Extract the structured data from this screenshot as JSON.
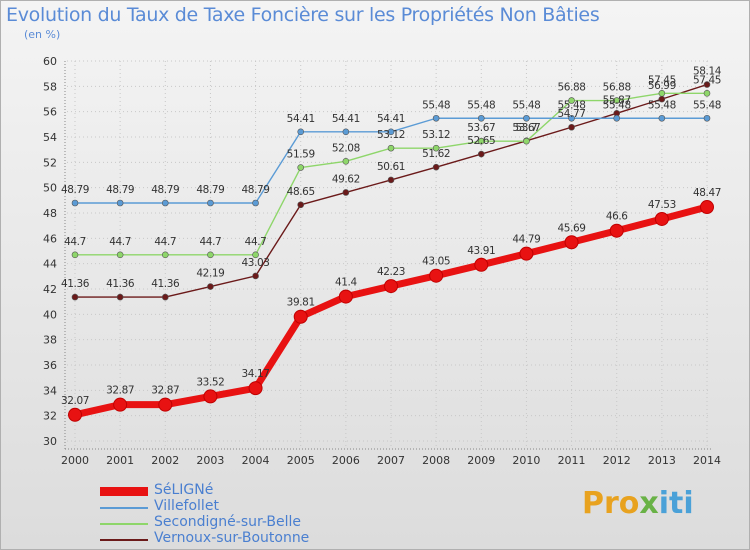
{
  "title": "Evolution du Taux de Taxe Foncière sur les Propriétés Non Bâties",
  "unit": "(en %)",
  "logo": {
    "p": "Pro",
    "x": "x",
    "i": "iti"
  },
  "colors": {
    "grid": "#c8c8c8",
    "axis_text": "#333333",
    "label_text": "#333333"
  },
  "chart_data": {
    "type": "line",
    "title": "Evolution du Taux de Taxe Foncière sur les Propriétés Non Bâties",
    "ylabel": "(en %)",
    "xlabel": "",
    "ylim": [
      30,
      60
    ],
    "yticks": [
      "30",
      "32",
      "34",
      "36",
      "38",
      "40",
      "42",
      "44",
      "46",
      "48",
      "50",
      "52",
      "54",
      "56",
      "58",
      "60"
    ],
    "categories": [
      "2000",
      "2001",
      "2002",
      "2003",
      "2004",
      "2005",
      "2006",
      "2007",
      "2008",
      "2009",
      "2010",
      "2011",
      "2012",
      "2013",
      "2014"
    ],
    "series": [
      {
        "name": "SéLIGNé",
        "color": "#e81212",
        "values": [
          32.07,
          32.87,
          32.87,
          33.52,
          34.17,
          39.81,
          41.4,
          42.23,
          43.05,
          43.91,
          44.79,
          45.69,
          46.6,
          47.53,
          48.47
        ],
        "labels": [
          "32.07",
          "32.87",
          "32.87",
          "33.52",
          "34.17",
          "39.81",
          "41.4",
          "42.23",
          "43.05",
          "43.91",
          "44.79",
          "45.69",
          "46.6",
          "47.53",
          "48.47"
        ]
      },
      {
        "name": "Villefollet",
        "color": "#5b9bd5",
        "values": [
          48.79,
          48.79,
          48.79,
          48.79,
          48.79,
          54.41,
          54.41,
          54.41,
          55.48,
          55.48,
          55.48,
          55.48,
          55.48,
          55.48,
          55.48
        ],
        "labels": [
          "48.79",
          "48.79",
          "48.79",
          "48.79",
          "48.79",
          "54.41",
          "54.41",
          "54.41",
          "55.48",
          "55.48",
          "55.48",
          "55.48",
          "55.48",
          "55.48",
          "55.48"
        ]
      },
      {
        "name": "Secondigné-sur-Belle",
        "color": "#8ed66a",
        "values": [
          44.7,
          44.7,
          44.7,
          44.7,
          44.7,
          51.59,
          52.08,
          53.12,
          53.12,
          53.67,
          53.67,
          56.88,
          56.88,
          57.45,
          57.45
        ],
        "labels": [
          "44.7",
          "44.7",
          "44.7",
          "44.7",
          "44.7",
          "51.59",
          "52.08",
          "53.12",
          "53.12",
          "53.67",
          "53.67",
          "56.88",
          "56.88",
          "57.45",
          "57.45"
        ]
      },
      {
        "name": "Vernoux-sur-Boutonne",
        "color": "#6b1a1a",
        "values": [
          41.36,
          41.36,
          41.36,
          42.19,
          43.03,
          48.65,
          49.62,
          50.61,
          51.62,
          52.65,
          53.7,
          54.77,
          55.87,
          56.99,
          58.14
        ],
        "labels": [
          "41.36",
          "41.36",
          "41.36",
          "42.19",
          "43.03",
          "48.65",
          "49.62",
          "50.61",
          "51.62",
          "52.65",
          "53.7",
          "54.77",
          "55.87",
          "56.99",
          "58.14"
        ]
      }
    ]
  }
}
